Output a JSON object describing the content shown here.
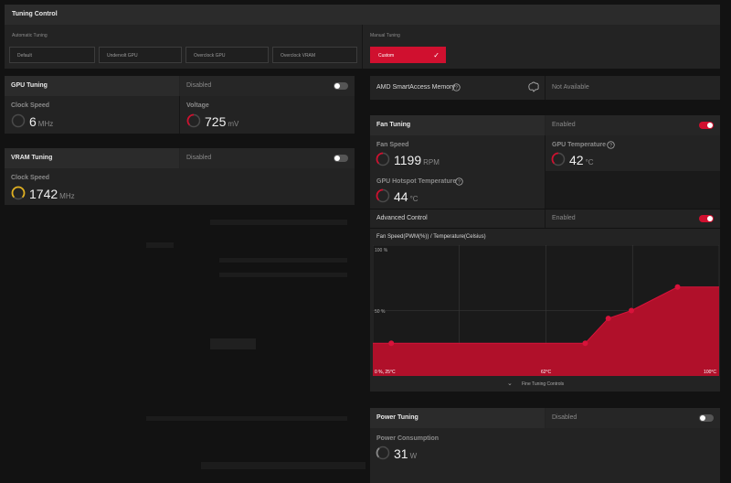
{
  "tuning_control": {
    "title": "Tuning Control",
    "automatic_label": "Automatic Tuning",
    "manual_label": "Manual Tuning",
    "presets": [
      "Default",
      "Undervolt GPU",
      "Overclock GPU",
      "Overclock VRAM"
    ],
    "custom_label": "Custom"
  },
  "gpu_tuning": {
    "title": "GPU Tuning",
    "state": "Disabled",
    "enabled": false,
    "clock_label": "Clock Speed",
    "clock_value": "6",
    "clock_unit": "MHz",
    "voltage_label": "Voltage",
    "voltage_value": "725",
    "voltage_unit": "mV"
  },
  "vram_tuning": {
    "title": "VRAM Tuning",
    "state": "Disabled",
    "enabled": false,
    "clock_label": "Clock Speed",
    "clock_value": "1742",
    "clock_unit": "MHz"
  },
  "smart_access": {
    "title": "AMD SmartAccess Memory",
    "status": "Not Available"
  },
  "fan_tuning": {
    "title": "Fan Tuning",
    "state": "Enabled",
    "enabled": true,
    "fan_speed_label": "Fan Speed",
    "fan_speed_value": "1199",
    "fan_speed_unit": "RPM",
    "gpu_temp_label": "GPU Temperature",
    "gpu_temp_value": "42",
    "gpu_temp_unit": "°C",
    "hotspot_label": "GPU Hotspot Temperature",
    "hotspot_value": "44",
    "hotspot_unit": "°C",
    "advanced_label": "Advanced Control",
    "advanced_state": "Enabled",
    "advanced_enabled": true,
    "fine_tuning_label": "Fine Tuning Controls"
  },
  "power_tuning": {
    "title": "Power Tuning",
    "state": "Disabled",
    "enabled": false,
    "consumption_label": "Power Consumption",
    "consumption_value": "31",
    "consumption_unit": "W"
  },
  "colors": {
    "accent": "#d0102f",
    "gauge_yellow": "#e0b020"
  },
  "chart_data": {
    "type": "area",
    "title": "Fan Speed(PWM(%)) / Temperature(Celsius)",
    "y_ticks": [
      "100 %",
      "50 %"
    ],
    "x_labels": [
      "0 %, 25°C",
      "62°C",
      "100°C"
    ],
    "xlim": [
      25,
      100
    ],
    "ylim": [
      0,
      100
    ],
    "x": [
      25,
      29,
      71,
      76,
      81,
      91,
      100
    ],
    "y": [
      25,
      25,
      25,
      44,
      50,
      68,
      68
    ],
    "markers": [
      [
        29,
        25
      ],
      [
        71,
        25
      ],
      [
        76,
        44
      ],
      [
        81,
        50
      ],
      [
        91,
        68
      ]
    ]
  }
}
